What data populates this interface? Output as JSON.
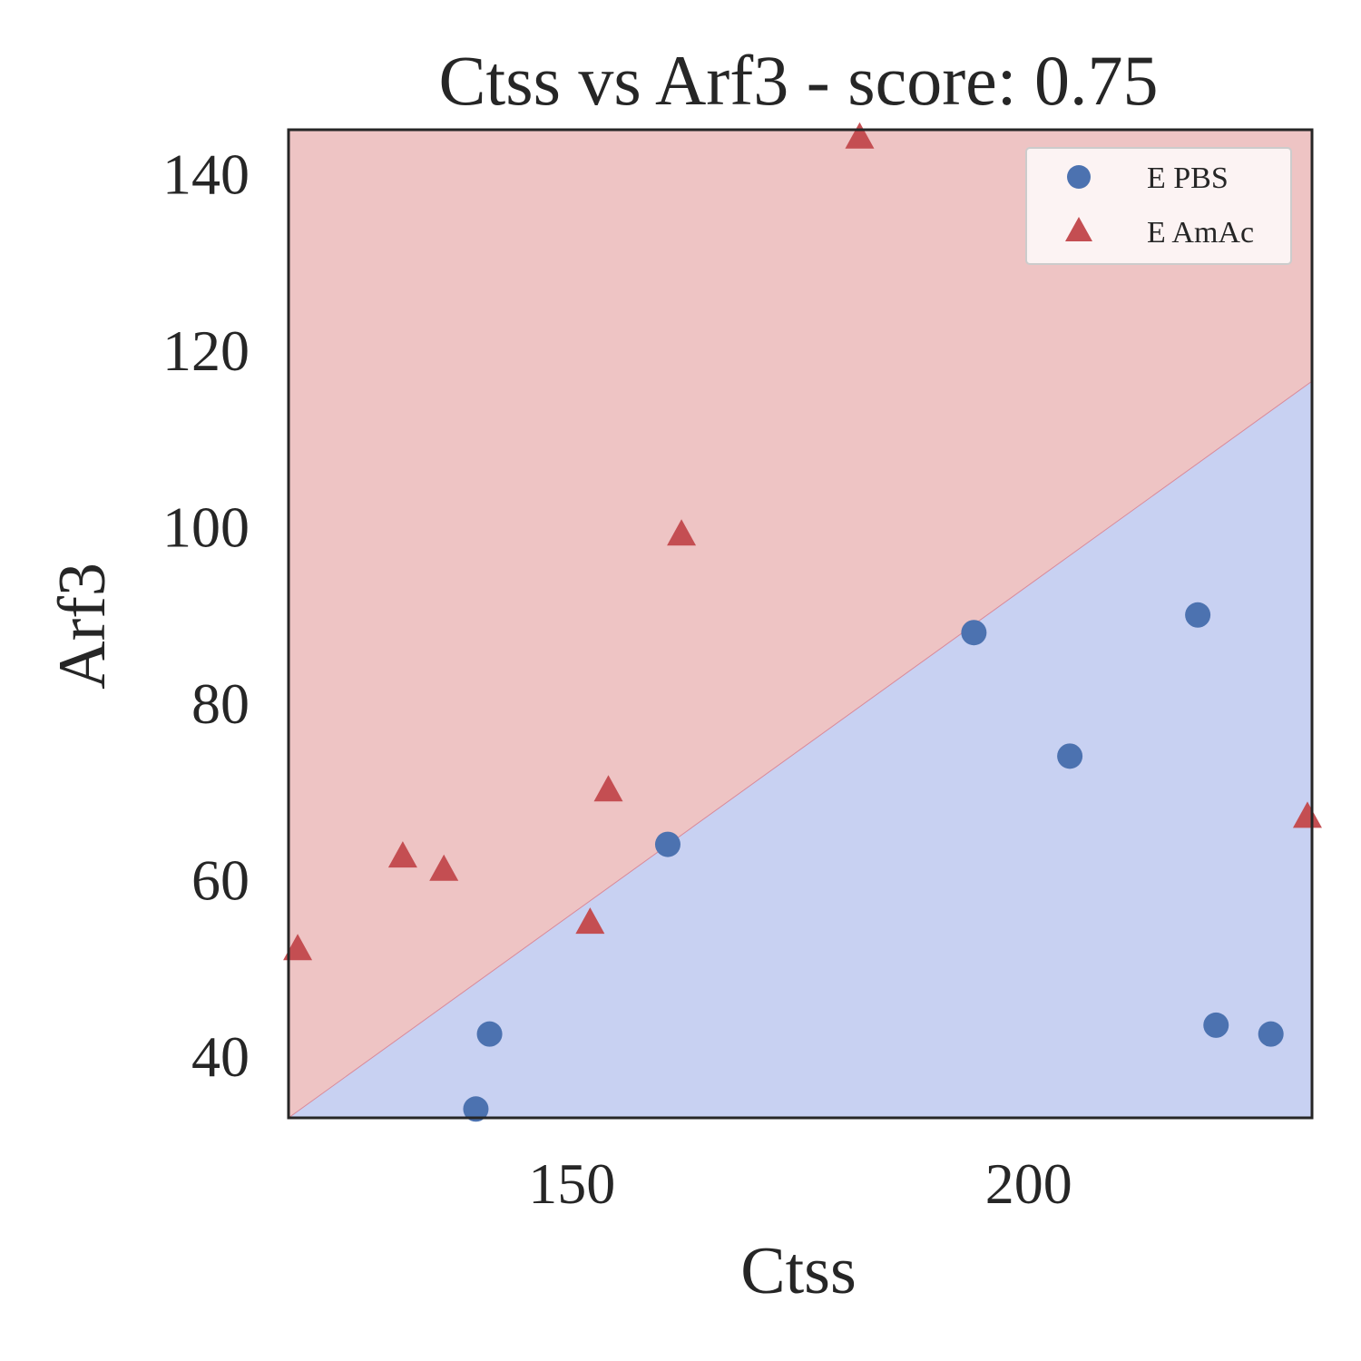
{
  "chart_data": {
    "type": "scatter",
    "title": "Ctss vs Arf3 - score: 0.75",
    "xlabel": "Ctss",
    "ylabel": "Arf3",
    "xlim": [
      119,
      231
    ],
    "ylim": [
      33,
      145
    ],
    "xticks": [
      150,
      200
    ],
    "yticks": [
      40,
      60,
      80,
      100,
      120,
      140
    ],
    "grid": false,
    "legend_position": "top-right",
    "decision_boundary": {
      "points": [
        [
          119,
          33
        ],
        [
          231,
          116.5
        ]
      ],
      "region_above": "E AmAc",
      "region_below": "E PBS",
      "color_above": "#eec4c4",
      "color_below": "#c8d1f2"
    },
    "series": [
      {
        "name": "E PBS",
        "marker": "circle",
        "color": "#4c72b0",
        "points": [
          [
            139.5,
            34.0
          ],
          [
            141.0,
            42.5
          ],
          [
            160.5,
            64.0
          ],
          [
            194.0,
            88.0
          ],
          [
            204.5,
            74.0
          ],
          [
            218.5,
            90.0
          ],
          [
            220.5,
            43.5
          ],
          [
            226.5,
            42.5
          ]
        ]
      },
      {
        "name": "E AmAc",
        "marker": "triangle",
        "color": "#c44e52",
        "points": [
          [
            120.0,
            52.0
          ],
          [
            131.5,
            62.5
          ],
          [
            136.0,
            61.0
          ],
          [
            152.0,
            55.0
          ],
          [
            154.0,
            70.0
          ],
          [
            162.0,
            99.0
          ],
          [
            181.5,
            144.0
          ],
          [
            230.5,
            67.0
          ]
        ]
      }
    ]
  }
}
